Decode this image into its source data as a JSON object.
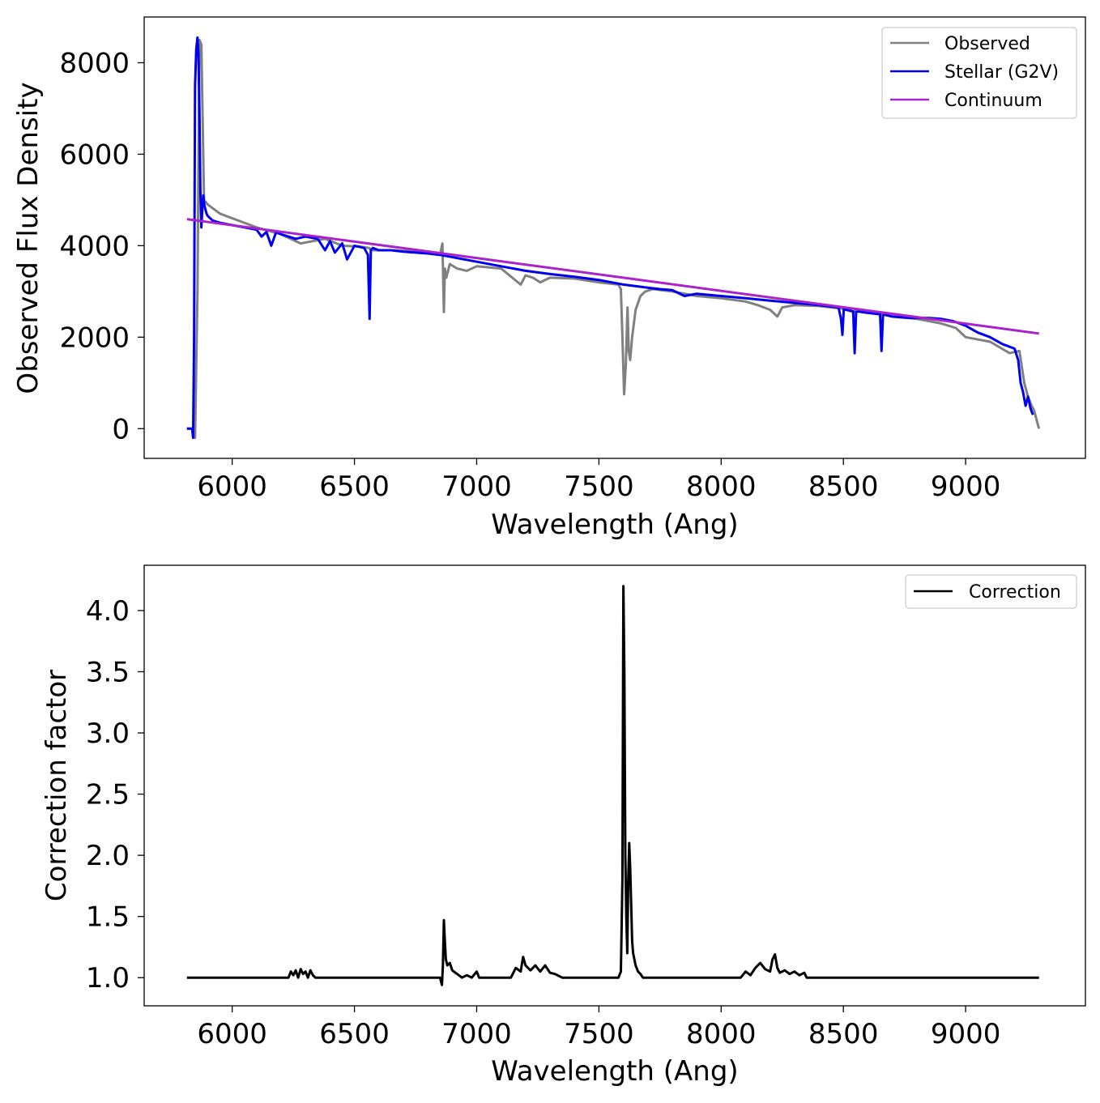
{
  "chart_data": [
    {
      "type": "line",
      "xlabel": "Wavelength (Ang)",
      "ylabel": "Observed Flux Density",
      "xlim": [
        5640,
        9490
      ],
      "ylim": [
        -650,
        9000
      ],
      "xticks": [
        6000,
        6500,
        7000,
        7500,
        8000,
        8500,
        9000
      ],
      "yticks": [
        0,
        2000,
        4000,
        6000,
        8000
      ],
      "xtick_labels": [
        "6000",
        "6500",
        "7000",
        "7500",
        "8000",
        "8500",
        "9000"
      ],
      "ytick_labels": [
        "0",
        "2000",
        "4000",
        "6000",
        "8000"
      ],
      "legend_position": "top-right",
      "series": [
        {
          "name": "Observed",
          "color": "#808080",
          "x": [
            5815,
            5840,
            5848,
            5858,
            5866,
            5874,
            5885,
            5900,
            5950,
            6000,
            6100,
            6200,
            6280,
            6330,
            6380,
            6450,
            6520,
            6560,
            6570,
            6650,
            6750,
            6850,
            6860,
            6866,
            6870,
            6876,
            6890,
            6920,
            6960,
            7000,
            7100,
            7180,
            7200,
            7230,
            7260,
            7300,
            7400,
            7500,
            7580,
            7590,
            7596,
            7603,
            7610,
            7617,
            7622,
            7628,
            7636,
            7650,
            7670,
            7690,
            7720,
            7800,
            7900,
            8000,
            8100,
            8150,
            8200,
            8230,
            8250,
            8300,
            8400,
            8500,
            8540,
            8550,
            8600,
            8660,
            8700,
            8800,
            8900,
            8960,
            9000,
            9100,
            9180,
            9220,
            9240,
            9255,
            9270,
            9280,
            9290,
            9300
          ],
          "y": [
            0,
            0,
            -200,
            3000,
            8500,
            8400,
            5000,
            4900,
            4700,
            4600,
            4400,
            4250,
            4050,
            4100,
            4150,
            4000,
            3980,
            3950,
            3900,
            3900,
            3870,
            3800,
            4050,
            2550,
            3500,
            3300,
            3600,
            3500,
            3450,
            3550,
            3500,
            3150,
            3350,
            3300,
            3200,
            3300,
            3280,
            3200,
            3150,
            3050,
            2000,
            750,
            1400,
            2650,
            1700,
            1500,
            2000,
            2600,
            2900,
            3000,
            3050,
            3000,
            2900,
            2850,
            2780,
            2700,
            2600,
            2450,
            2650,
            2700,
            2680,
            2620,
            2550,
            2600,
            2550,
            2500,
            2450,
            2400,
            2300,
            2200,
            2000,
            1900,
            1650,
            1700,
            1000,
            700,
            500,
            400,
            200,
            0
          ]
        },
        {
          "name": "Stellar (G2V)",
          "color": "#0000ee",
          "x": [
            5815,
            5836,
            5840,
            5844,
            5848,
            5853,
            5858,
            5862,
            5866,
            5870,
            5874,
            5878,
            5882,
            5886,
            5890,
            5895,
            5900,
            5920,
            5950,
            6000,
            6050,
            6100,
            6120,
            6140,
            6160,
            6180,
            6200,
            6230,
            6260,
            6300,
            6350,
            6380,
            6400,
            6420,
            6450,
            6470,
            6500,
            6540,
            6555,
            6562,
            6567,
            6575,
            6600,
            6650,
            6700,
            6750,
            6800,
            6850,
            7000,
            7100,
            7200,
            7300,
            7400,
            7500,
            7600,
            7700,
            7750,
            7800,
            7850,
            7900,
            8000,
            8100,
            8200,
            8300,
            8400,
            8480,
            8490,
            8496,
            8502,
            8510,
            8530,
            8540,
            8546,
            8552,
            8560,
            8600,
            8650,
            8656,
            8662,
            8670,
            8700,
            8750,
            8800,
            8850,
            8900,
            8950,
            9000,
            9050,
            9100,
            9150,
            9200,
            9215,
            9225,
            9235,
            9245,
            9255,
            9265,
            9275
          ],
          "y": [
            0,
            0,
            -200,
            2000,
            7500,
            8300,
            8550,
            8200,
            7000,
            5200,
            4400,
            4800,
            5100,
            4900,
            4800,
            4700,
            4650,
            4550,
            4500,
            4450,
            4400,
            4350,
            4200,
            4300,
            4000,
            4300,
            4250,
            4200,
            4150,
            4200,
            4150,
            3900,
            4100,
            3850,
            4050,
            3700,
            4000,
            3950,
            3800,
            2400,
            3900,
            3950,
            3900,
            3900,
            3870,
            3850,
            3830,
            3800,
            3650,
            3550,
            3450,
            3380,
            3320,
            3250,
            3150,
            3080,
            3050,
            3030,
            2900,
            2950,
            2900,
            2850,
            2800,
            2750,
            2700,
            2650,
            2400,
            2050,
            2650,
            2600,
            2580,
            2560,
            1650,
            2550,
            2560,
            2530,
            2500,
            1700,
            2480,
            2490,
            2450,
            2430,
            2420,
            2420,
            2400,
            2350,
            2250,
            2100,
            2000,
            1850,
            1750,
            1500,
            1000,
            800,
            500,
            700,
            450,
            300
          ]
        },
        {
          "name": "Continuum",
          "color": "#aa22cc",
          "x": [
            5815,
            9300
          ],
          "y": [
            4580,
            2080
          ]
        }
      ]
    },
    {
      "type": "line",
      "xlabel": "Wavelength (Ang)",
      "ylabel": "Correction factor",
      "xlim": [
        5640,
        9490
      ],
      "ylim": [
        0.77,
        4.37
      ],
      "xticks": [
        6000,
        6500,
        7000,
        7500,
        8000,
        8500,
        9000
      ],
      "yticks": [
        1.0,
        1.5,
        2.0,
        2.5,
        3.0,
        3.5,
        4.0
      ],
      "xtick_labels": [
        "6000",
        "6500",
        "7000",
        "7500",
        "8000",
        "8500",
        "9000"
      ],
      "ytick_labels": [
        "1.0",
        "1.5",
        "2.0",
        "2.5",
        "3.0",
        "3.5",
        "4.0"
      ],
      "legend_position": "top-right",
      "series": [
        {
          "name": "Correction",
          "color": "#000000",
          "x": [
            5815,
            6230,
            6240,
            6250,
            6260,
            6270,
            6280,
            6290,
            6300,
            6310,
            6320,
            6330,
            6340,
            6850,
            6858,
            6862,
            6866,
            6870,
            6874,
            6880,
            6890,
            6900,
            6920,
            6940,
            6960,
            6980,
            7000,
            7010,
            7030,
            7140,
            7160,
            7180,
            7190,
            7200,
            7220,
            7240,
            7260,
            7280,
            7300,
            7320,
            7350,
            7580,
            7590,
            7596,
            7600,
            7604,
            7608,
            7612,
            7616,
            7620,
            7624,
            7628,
            7632,
            7636,
            7640,
            7650,
            7660,
            7670,
            7680,
            7700,
            8080,
            8100,
            8120,
            8140,
            8160,
            8180,
            8200,
            8210,
            8220,
            8230,
            8240,
            8260,
            8280,
            8300,
            8320,
            8340,
            8350,
            9300
          ],
          "y": [
            1.0,
            1.0,
            1.05,
            1.02,
            1.06,
            1.0,
            1.07,
            1.03,
            1.05,
            1.0,
            1.06,
            1.02,
            1.0,
            1.0,
            0.94,
            1.1,
            1.47,
            1.3,
            1.15,
            1.1,
            1.12,
            1.06,
            1.03,
            1.0,
            1.02,
            1.0,
            1.05,
            1.0,
            1.0,
            1.0,
            1.08,
            1.05,
            1.17,
            1.1,
            1.06,
            1.1,
            1.05,
            1.1,
            1.04,
            1.03,
            1.0,
            1.0,
            1.05,
            1.8,
            4.2,
            3.5,
            2.0,
            1.5,
            1.2,
            1.8,
            2.1,
            1.9,
            1.6,
            1.3,
            1.2,
            1.1,
            1.05,
            1.03,
            1.0,
            1.0,
            1.0,
            1.05,
            1.02,
            1.08,
            1.12,
            1.07,
            1.05,
            1.15,
            1.19,
            1.08,
            1.04,
            1.06,
            1.03,
            1.05,
            1.02,
            1.04,
            1.0,
            1.0
          ]
        }
      ]
    }
  ]
}
